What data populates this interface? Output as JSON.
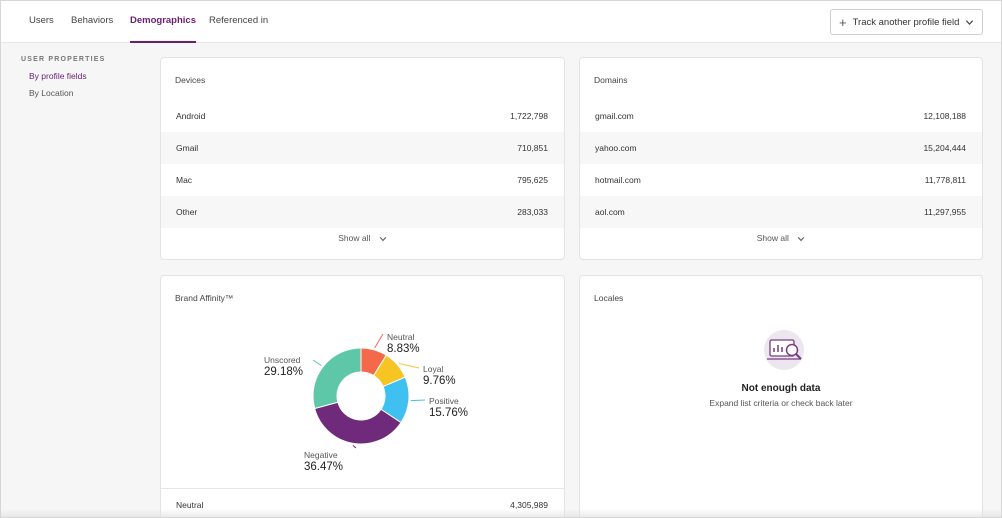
{
  "tabs": [
    {
      "label": "Users"
    },
    {
      "label": "Behaviors"
    },
    {
      "label": "Demographics"
    },
    {
      "label": "Referenced in"
    }
  ],
  "track_button": {
    "label": "Track another profile field",
    "icon": "plus-icon"
  },
  "nav": {
    "heading": "USER PROPERTIES",
    "items": [
      {
        "label": "By profile fields"
      },
      {
        "label": "By Location"
      }
    ]
  },
  "devices": {
    "title": "Devices",
    "rows": [
      {
        "name": "Android",
        "value": "1,722,798"
      },
      {
        "name": "Gmail",
        "value": "710,851"
      },
      {
        "name": "Mac",
        "value": "795,625"
      },
      {
        "name": "Other",
        "value": "283,033"
      }
    ],
    "show_all": "Show all"
  },
  "domains": {
    "title": "Domains",
    "rows": [
      {
        "name": "gmail.com",
        "value": "12,108,188"
      },
      {
        "name": "yahoo.com",
        "value": "15,204,444"
      },
      {
        "name": "hotmail.com",
        "value": "11,778,811"
      },
      {
        "name": "aol.com",
        "value": "11,297,955"
      }
    ],
    "show_all": "Show all"
  },
  "brand": {
    "title": "Brand Affinity™",
    "footer_row": {
      "name": "Neutral",
      "value": "4,305,989"
    }
  },
  "chart_data": {
    "type": "pie",
    "categories": [
      "Neutral",
      "Loyal",
      "Positive",
      "Negative",
      "Unscored"
    ],
    "values": [
      8.83,
      9.76,
      15.76,
      36.47,
      29.18
    ],
    "labels": [
      "8.83%",
      "9.76%",
      "15.76%",
      "36.47%",
      "29.18%"
    ],
    "colors": [
      "#f4694a",
      "#f6c523",
      "#3ec1f0",
      "#6f2a7c",
      "#5ec7a8"
    ],
    "donut": true
  },
  "locales": {
    "title": "Locales",
    "empty_title": "Not enough data",
    "empty_subtitle": "Expand list criteria or check back later",
    "icon": "empty-chart-magnifier-icon"
  }
}
